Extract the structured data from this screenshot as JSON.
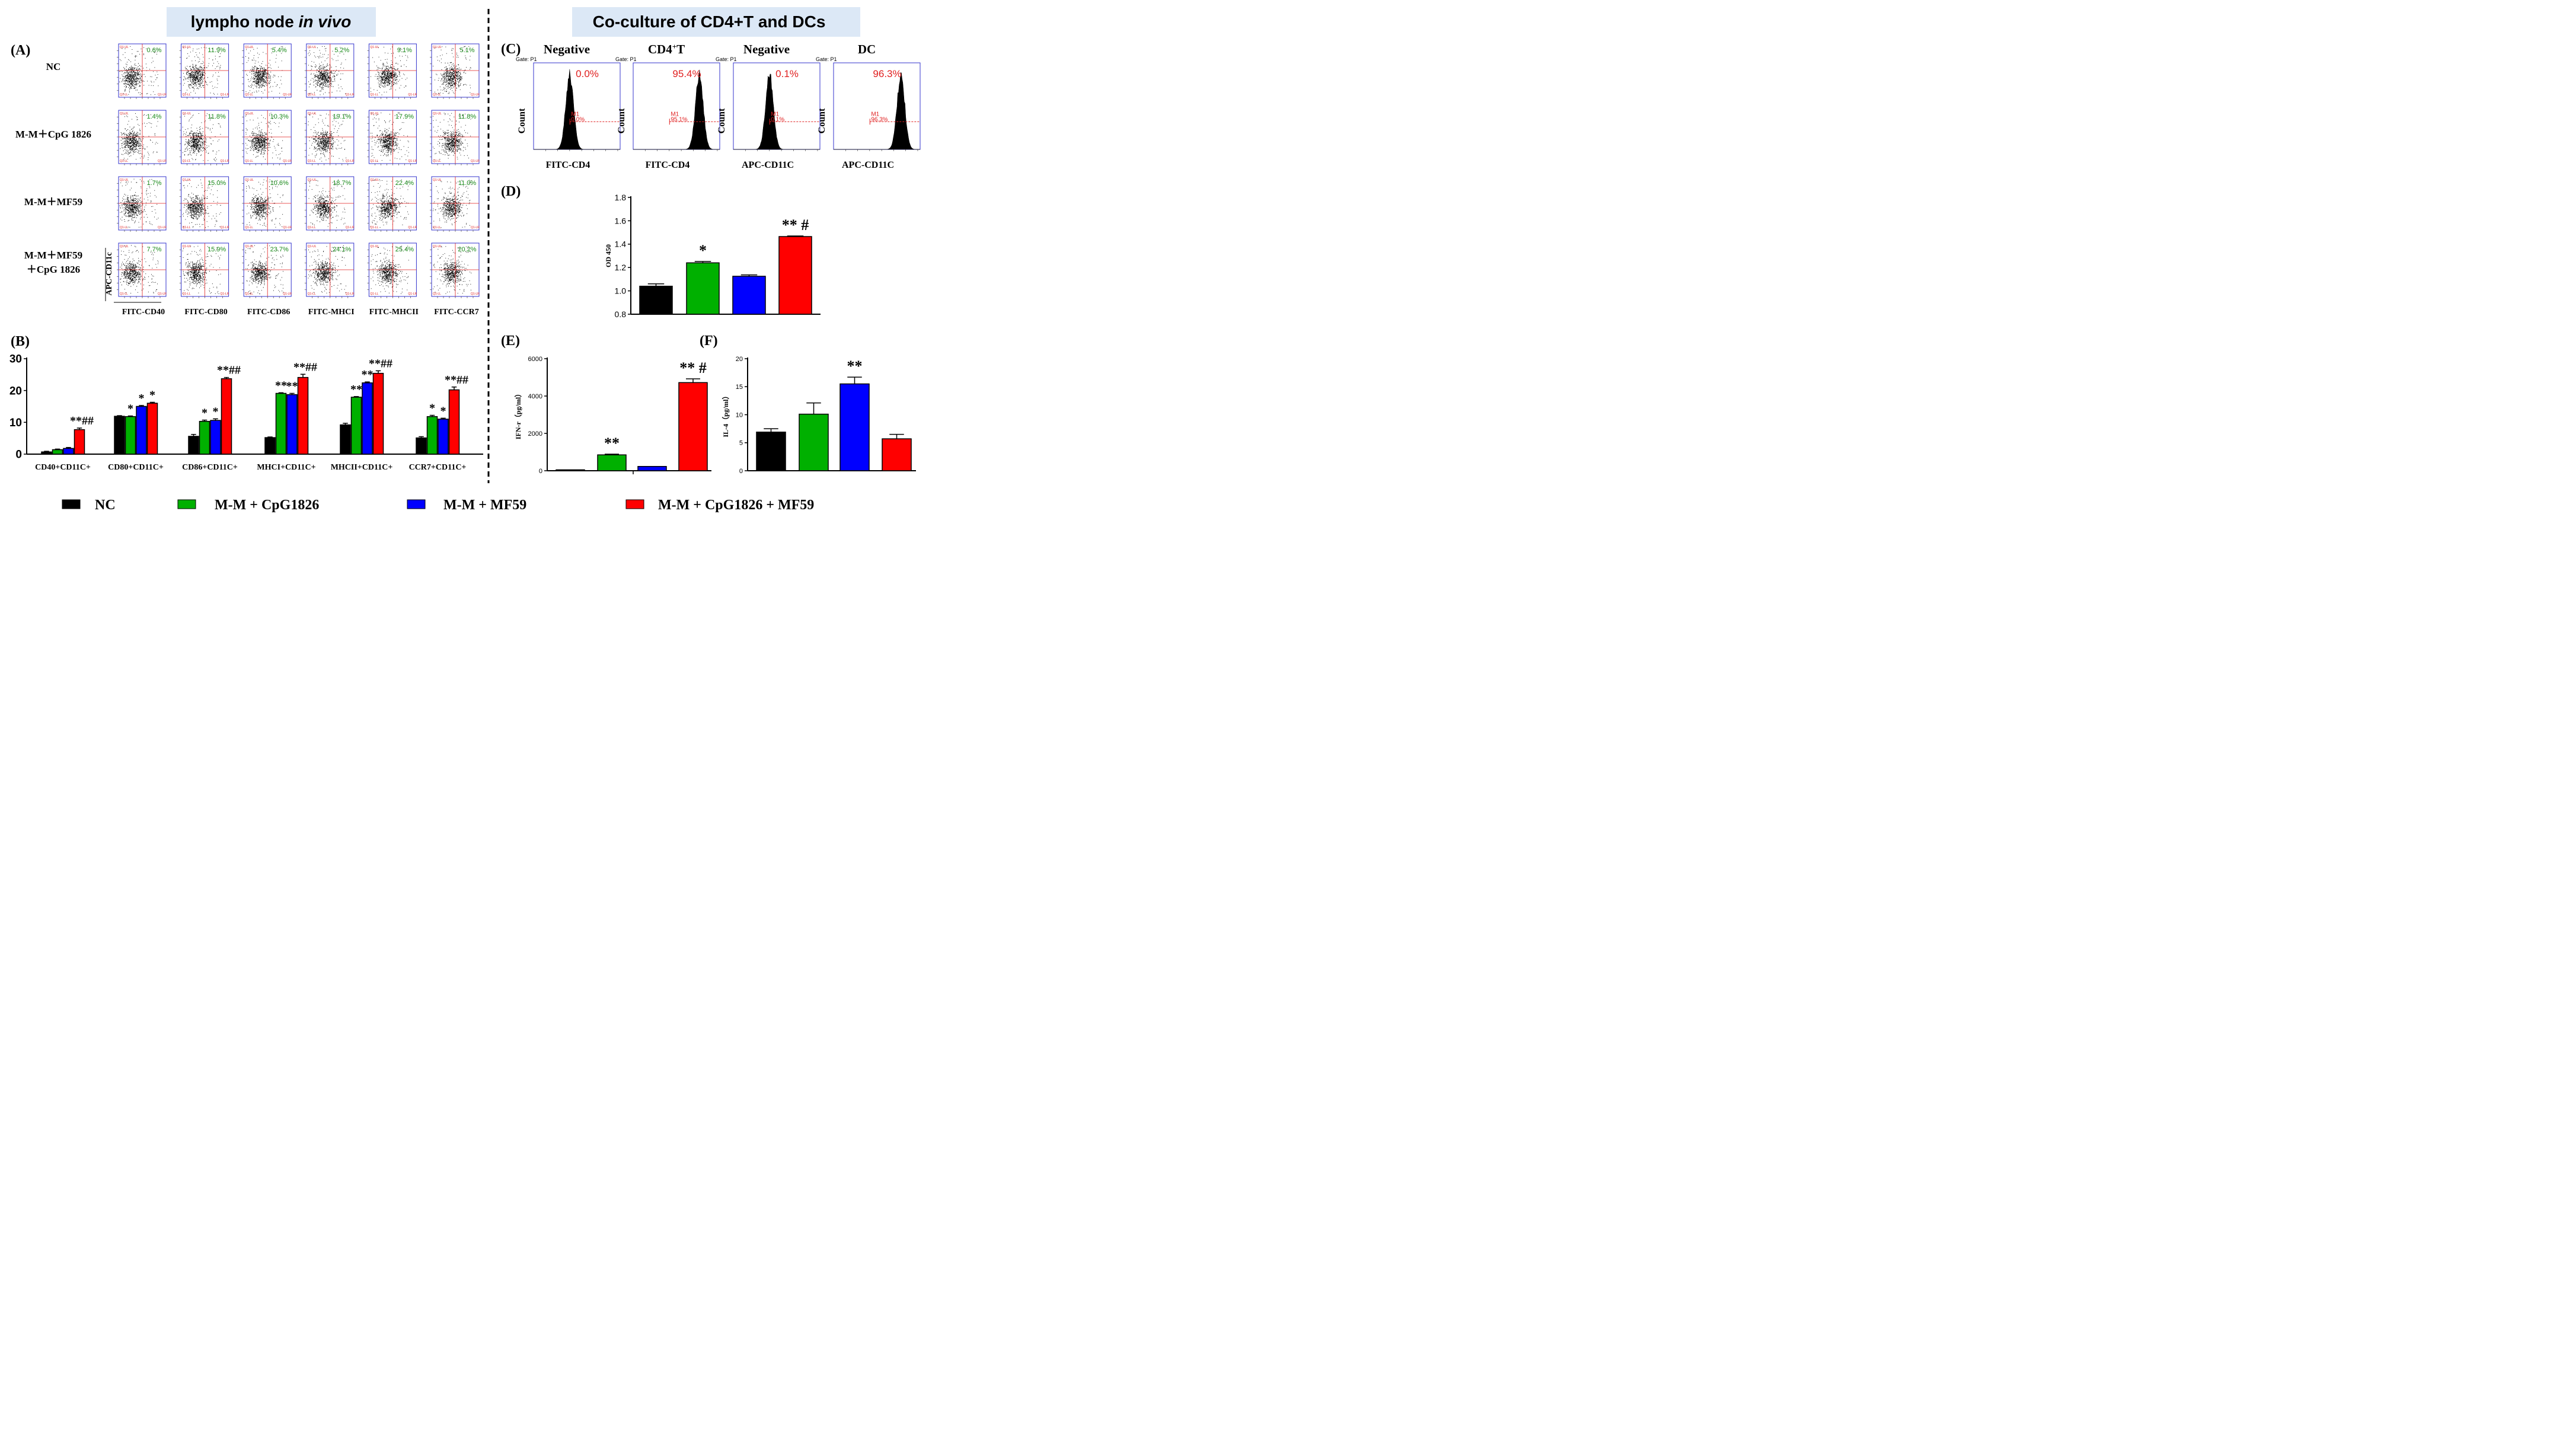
{
  "headers": {
    "left": {
      "prefix": "lympho node ",
      "italic": "in vivo"
    },
    "right": "Co-culture of CD4+T and DCs"
  },
  "panel_labels": {
    "A": "(A)",
    "B": "(B)",
    "C": "(C)",
    "D": "(D)",
    "E": "(E)",
    "F": "(F)"
  },
  "panel_A": {
    "row_labels": [
      [
        "NC"
      ],
      [
        "M-M＋CpG 1826"
      ],
      [
        "M-M＋MF59"
      ],
      [
        "M-M＋MF59",
        "＋CpG 1826"
      ]
    ],
    "col_labels": [
      "FITC-CD40",
      "FITC-CD80",
      "FITC-CD86",
      "FITC-MHCI",
      "FITC-MHCII",
      "FITC-CCR7"
    ],
    "y_axis_label": "APC-CD11c",
    "percentages": [
      [
        "0.6%",
        "11.9%",
        "5.4%",
        "5.2%",
        "9.1%",
        "5.1%"
      ],
      [
        "1.4%",
        "11.8%",
        "10.3%",
        "19.1%",
        "17.9%",
        "11.8%"
      ],
      [
        "1.7%",
        "15.0%",
        "10.6%",
        "18.7%",
        "22.4%",
        "11.0%"
      ],
      [
        "7.7%",
        "15.9%",
        "23.7%",
        "24.1%",
        "25.4%",
        "20.2%"
      ]
    ],
    "quadrant_labels": [
      "Q1-UL",
      "Q1-UR",
      "Q1-LL",
      "Q1-LR"
    ]
  },
  "panel_C": {
    "gate": "Gate: P1",
    "marker": "M1",
    "y_label": "Count",
    "histograms": [
      {
        "title": "Negative",
        "sup": "",
        "xlabel": "FITC-CD4",
        "pct": "0.0%",
        "m1": "0.0%",
        "peak_log": 3.0
      },
      {
        "title": "CD4",
        "sup": "+",
        "title_suffix": "T",
        "xlabel": "FITC-CD4",
        "pct": "95.4%",
        "m1": "95.1%",
        "peak_log": 5.5
      },
      {
        "title": "Negative",
        "sup": "",
        "xlabel": "APC-CD11C",
        "pct": "0.1%",
        "m1": "0.1%",
        "peak_log": 3.0
      },
      {
        "title": "DC",
        "sup": "",
        "xlabel": "APC-CD11C",
        "pct": "96.3%",
        "m1": "96.3%",
        "peak_log": 5.6
      }
    ]
  },
  "colors": {
    "NC": "#000000",
    "CpG": "#00b000",
    "MF59": "#0000ff",
    "Combo": "#ff0000"
  },
  "legend": [
    "NC",
    "M-M + CpG1826",
    "M-M + MF59",
    "M-M + CpG1826 + MF59"
  ],
  "chart_data": [
    {
      "id": "B",
      "type": "bar",
      "categories": [
        "CD40+CD11C+",
        "CD80+CD11C+",
        "CD86+CD11C+",
        "MHCI+CD11C+",
        "MHCII+CD11C+",
        "CCR7+CD11C+"
      ],
      "series": [
        {
          "name": "NC",
          "values": [
            0.7,
            11.9,
            5.6,
            5.2,
            9.2,
            5.1
          ],
          "errors": [
            0.2,
            0.2,
            0.6,
            0.2,
            0.5,
            0.4
          ]
        },
        {
          "name": "M-M + CpG1826",
          "values": [
            1.4,
            11.8,
            10.3,
            19.1,
            17.9,
            11.8
          ],
          "errors": [
            0.2,
            0.2,
            0.4,
            0.2,
            0.2,
            0.4
          ]
        },
        {
          "name": "M-M + MF59",
          "values": [
            1.8,
            15.0,
            10.6,
            18.7,
            22.4,
            11.0
          ],
          "errors": [
            0.3,
            0.3,
            0.5,
            0.4,
            0.3,
            0.3
          ]
        },
        {
          "name": "M-M + CpG1826 + MF59",
          "values": [
            7.7,
            16.0,
            23.7,
            24.1,
            25.4,
            20.2
          ],
          "errors": [
            0.5,
            0.3,
            0.4,
            1.0,
            0.8,
            0.9
          ]
        }
      ],
      "annotations": [
        {
          "cat": 0,
          "bar": 3,
          "text": "**##"
        },
        {
          "cat": 1,
          "bar": 1,
          "text": "*"
        },
        {
          "cat": 1,
          "bar": 2,
          "text": "*"
        },
        {
          "cat": 1,
          "bar": 3,
          "text": "*"
        },
        {
          "cat": 2,
          "bar": 1,
          "text": "*"
        },
        {
          "cat": 2,
          "bar": 2,
          "text": "*"
        },
        {
          "cat": 2,
          "bar": 3,
          "text": "**##"
        },
        {
          "cat": 3,
          "bar": 1,
          "text": "**"
        },
        {
          "cat": 3,
          "bar": 2,
          "text": "**"
        },
        {
          "cat": 3,
          "bar": 3,
          "text": "**##"
        },
        {
          "cat": 4,
          "bar": 1,
          "text": "**"
        },
        {
          "cat": 4,
          "bar": 2,
          "text": "**"
        },
        {
          "cat": 4,
          "bar": 3,
          "text": "**##"
        },
        {
          "cat": 5,
          "bar": 1,
          "text": "*"
        },
        {
          "cat": 5,
          "bar": 2,
          "text": "*"
        },
        {
          "cat": 5,
          "bar": 3,
          "text": "**##"
        }
      ],
      "ylim": [
        0,
        30
      ],
      "yticks": [
        0,
        10,
        20,
        30
      ],
      "ylabel": ""
    },
    {
      "id": "D",
      "type": "bar",
      "categories": [
        "NC",
        "M-M + CpG1826",
        "M-M + MF59",
        "M-M + CpG1826 + MF59"
      ],
      "values": [
        1.04,
        1.24,
        1.125,
        1.465
      ],
      "errors": [
        0.02,
        0.012,
        0.012,
        0.005
      ],
      "annotations": [
        "",
        "*",
        "",
        "** #"
      ],
      "ylabel": "OD 450",
      "ylim": [
        0.8,
        1.8
      ],
      "yticks": [
        "0.8",
        "1.0",
        "1.2",
        "1.4",
        "1.6",
        "1.8"
      ]
    },
    {
      "id": "E",
      "type": "bar",
      "categories": [
        "NC",
        "M-M + CpG1826",
        "M-M + MF59",
        "M-M + CpG1826 + MF59"
      ],
      "values": [
        50,
        850,
        230,
        4720
      ],
      "errors": [
        0,
        40,
        0,
        200
      ],
      "annotations": [
        "",
        "**",
        "",
        "** #"
      ],
      "ylabel": "IFN-r（pg/ml）",
      "ylim": [
        0,
        6000
      ],
      "yticks": [
        "0",
        "2000",
        "4000",
        "6000"
      ]
    },
    {
      "id": "F",
      "type": "bar",
      "categories": [
        "NC",
        "M-M + CpG1826",
        "M-M + MF59",
        "M-M + CpG1826 + MF59"
      ],
      "values": [
        6.9,
        10.1,
        15.5,
        5.7
      ],
      "errors": [
        0.6,
        2.0,
        1.2,
        0.8
      ],
      "annotations": [
        "",
        "",
        "**",
        ""
      ],
      "ylabel": "IL-4（pg/ml）",
      "ylim": [
        0,
        20
      ],
      "yticks": [
        "0",
        "5",
        "10",
        "15",
        "20"
      ]
    }
  ]
}
